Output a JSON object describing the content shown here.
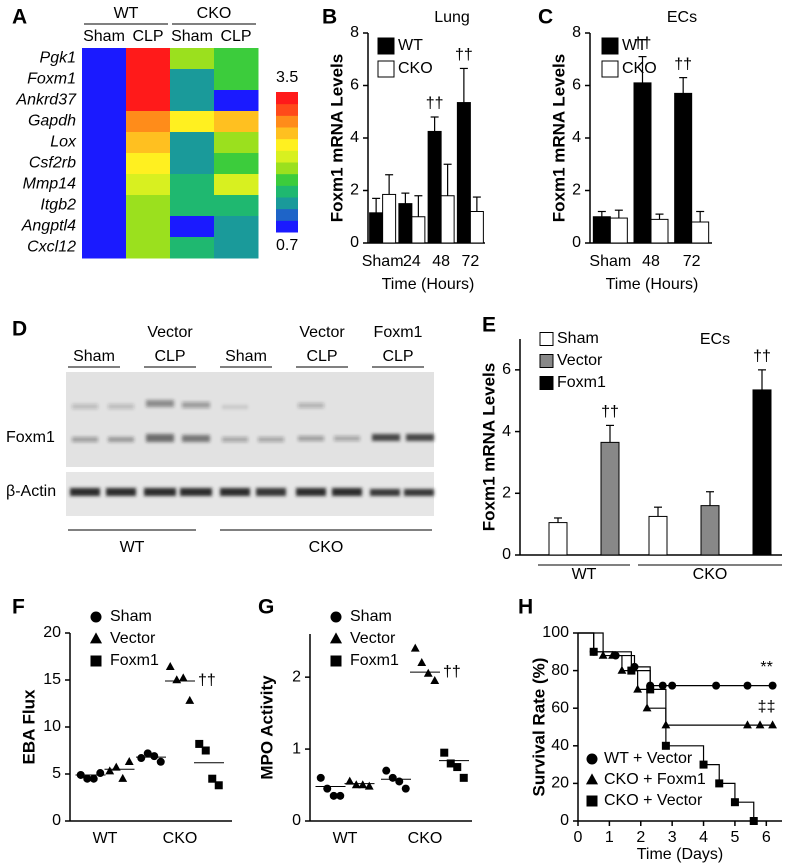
{
  "chart_data": [
    {
      "type": "heatmap",
      "panel": "A",
      "column_groups": [
        "WT",
        "CKO"
      ],
      "columns": [
        "Sham",
        "CLP",
        "Sham",
        "CLP"
      ],
      "rows": [
        "Pgk1",
        "Foxm1",
        "Ankrd37",
        "Gapdh",
        "Lox",
        "Csf2rb",
        "Mmp14",
        "Itgb2",
        "Angptl4",
        "Cxcl12"
      ],
      "values": [
        [
          0.7,
          3.5,
          2.0,
          1.75
        ],
        [
          0.7,
          3.5,
          1.2,
          1.75
        ],
        [
          0.7,
          3.5,
          1.2,
          0.7
        ],
        [
          0.7,
          3.0,
          2.5,
          2.75
        ],
        [
          0.7,
          2.75,
          1.2,
          1.95
        ],
        [
          0.7,
          2.5,
          1.2,
          1.75
        ],
        [
          0.7,
          2.25,
          1.5,
          2.2
        ],
        [
          0.7,
          2.0,
          1.5,
          1.5
        ],
        [
          0.7,
          2.0,
          0.7,
          1.2
        ],
        [
          0.7,
          2.0,
          1.5,
          1.2
        ]
      ],
      "clim": [
        0.7,
        3.5
      ],
      "colormap": [
        "#1a1aff",
        "#1e64c8",
        "#1a9a9a",
        "#1fb870",
        "#3ccc3c",
        "#9be01e",
        "#d8f020",
        "#fff020",
        "#ffc020",
        "#ff8c1a",
        "#ff4a1a",
        "#ff1a1a"
      ]
    },
    {
      "type": "bar",
      "panel": "B",
      "title": "Lung",
      "xlabel": "Time (Hours)",
      "ylabel": "Foxm1 mRNA Levels",
      "categories": [
        "Sham",
        "24",
        "48",
        "72"
      ],
      "series": [
        {
          "name": "WT",
          "color": "#000000",
          "values": [
            1.15,
            1.5,
            4.25,
            5.35
          ],
          "errors": [
            0.55,
            0.4,
            0.55,
            1.3
          ],
          "annotations": [
            null,
            null,
            "††",
            "††"
          ]
        },
        {
          "name": "CKO",
          "color": "#ffffff",
          "values": [
            1.85,
            1.0,
            1.8,
            1.2
          ],
          "errors": [
            0.75,
            0.8,
            1.2,
            0.55
          ]
        }
      ],
      "ylim": [
        0,
        8
      ],
      "yticks": [
        0,
        2,
        4,
        6,
        8
      ],
      "legend": "upper left"
    },
    {
      "type": "bar",
      "panel": "C",
      "title": "ECs",
      "xlabel": "Time (Hours)",
      "ylabel": "Foxm1 mRNA Levels",
      "categories": [
        "Sham",
        "48",
        "72"
      ],
      "series": [
        {
          "name": "WT",
          "color": "#000000",
          "values": [
            1.0,
            6.1,
            5.7
          ],
          "errors": [
            0.2,
            1.0,
            0.6
          ],
          "annotations": [
            null,
            "††",
            "††"
          ]
        },
        {
          "name": "CKO",
          "color": "#ffffff",
          "values": [
            0.95,
            0.9,
            0.8
          ],
          "errors": [
            0.3,
            0.2,
            0.4
          ]
        }
      ],
      "ylim": [
        0,
        8
      ],
      "yticks": [
        0,
        2,
        4,
        6,
        8
      ],
      "legend": "upper left"
    },
    {
      "type": "bar",
      "panel": "E",
      "title": "ECs",
      "ylabel": "Foxm1 mRNA Levels",
      "categories": [
        "WT",
        "CKO"
      ],
      "series": [
        {
          "name": "Sham",
          "color": "#ffffff",
          "values": [
            1.05,
            1.25
          ],
          "errors": [
            0.15,
            0.3
          ]
        },
        {
          "name": "Vector",
          "color": "#888888",
          "values": [
            3.65,
            1.6
          ],
          "errors": [
            0.55,
            0.45
          ],
          "annotations": [
            "††",
            null
          ]
        },
        {
          "name": "Foxm1",
          "color": "#000000",
          "values": [
            null,
            5.35
          ],
          "errors": [
            null,
            0.65
          ],
          "annotations": [
            null,
            "††"
          ]
        }
      ],
      "ylim": [
        0,
        7
      ],
      "yticks": [
        0,
        2,
        4,
        6
      ],
      "legend": "upper left"
    },
    {
      "type": "dot",
      "panel": "F",
      "ylabel": "EBA Flux",
      "categories": [
        "WT",
        "CKO"
      ],
      "series": [
        {
          "name": "Sham",
          "marker": "circle",
          "values": [
            [
              4.9,
              4.5,
              4.5,
              5.1
            ],
            [
              6.7,
              7.2,
              6.9,
              6.3
            ]
          ],
          "means": [
            4.9,
            6.8
          ]
        },
        {
          "name": "Vector",
          "marker": "triangle",
          "values": [
            [
              5.3,
              5.7,
              4.5,
              6.3
            ],
            [
              16.4,
              15.0,
              15.2,
              12.8
            ]
          ],
          "means": [
            5.5,
            14.9
          ],
          "annotations": [
            null,
            "††"
          ]
        },
        {
          "name": "Foxm1",
          "marker": "square",
          "values": [
            null,
            [
              8.2,
              7.5,
              4.5,
              3.8
            ]
          ],
          "means": [
            null,
            6.2
          ]
        }
      ],
      "ylim": [
        0,
        20
      ],
      "yticks": [
        0,
        5,
        10,
        15,
        20
      ],
      "legend": "upper left"
    },
    {
      "type": "dot",
      "panel": "G",
      "ylabel": "MPO Activity",
      "categories": [
        "WT",
        "CKO"
      ],
      "series": [
        {
          "name": "Sham",
          "marker": "circle",
          "values": [
            [
              0.6,
              0.45,
              0.35,
              0.35
            ],
            [
              0.7,
              0.6,
              0.55,
              0.45
            ]
          ],
          "means": [
            0.48,
            0.58
          ]
        },
        {
          "name": "Vector",
          "marker": "triangle",
          "values": [
            [
              0.55,
              0.5,
              0.5,
              0.48
            ],
            [
              2.4,
              2.2,
              2.05,
              1.95
            ]
          ],
          "means": [
            0.52,
            2.07
          ],
          "annotations": [
            null,
            "††"
          ]
        },
        {
          "name": "Foxm1",
          "marker": "square",
          "values": [
            null,
            [
              0.95,
              0.8,
              0.75,
              0.6
            ]
          ],
          "means": [
            null,
            0.84
          ]
        }
      ],
      "ylim": [
        0,
        2.6
      ],
      "yticks": [
        0,
        1,
        2
      ],
      "legend": "upper left"
    },
    {
      "type": "survival",
      "panel": "H",
      "xlabel": "Time (Days)",
      "ylabel": "Survival Rate (%)",
      "series": [
        {
          "name": "WT + Vector",
          "marker": "circle",
          "x": [
            0,
            0.5,
            1.2,
            1.8,
            2.3,
            2.7,
            3.0,
            4.4,
            5.4,
            6.2
          ],
          "values": [
            100,
            90,
            88,
            82,
            72,
            72,
            72,
            72,
            72,
            72
          ],
          "annotation": "**"
        },
        {
          "name": "CKO + Foxm1",
          "marker": "triangle",
          "x": [
            0,
            0.8,
            1.1,
            1.4,
            1.9,
            2.2,
            2.8,
            5.4,
            5.8,
            6.2
          ],
          "values": [
            100,
            88,
            88,
            80,
            70,
            60,
            51,
            51,
            51,
            51
          ],
          "annotation": "‡‡"
        },
        {
          "name": "CKO + Vector",
          "marker": "square",
          "x": [
            0,
            0.5,
            1.7,
            2.3,
            2.8,
            4.0,
            4.5,
            5.0,
            5.6
          ],
          "values": [
            100,
            90,
            80,
            70,
            40,
            30,
            20,
            10,
            0
          ]
        }
      ],
      "xlim": [
        0,
        6.5
      ],
      "xticks": [
        0,
        1,
        2,
        3,
        4,
        5,
        6
      ],
      "ylim": [
        0,
        100
      ],
      "yticks": [
        0,
        20,
        40,
        60,
        80,
        100
      ],
      "legend": "lower left"
    }
  ],
  "blot": {
    "panel": "D",
    "lane_groups": [
      [
        "Sham"
      ],
      [
        "Vector",
        "CLP"
      ],
      [
        "Sham"
      ],
      [
        "Vector",
        "CLP"
      ],
      [
        "Foxm1",
        "CLP"
      ]
    ],
    "rows": [
      "Foxm1",
      "β-Actin"
    ],
    "genotypes": [
      "WT",
      "CKO"
    ]
  }
}
